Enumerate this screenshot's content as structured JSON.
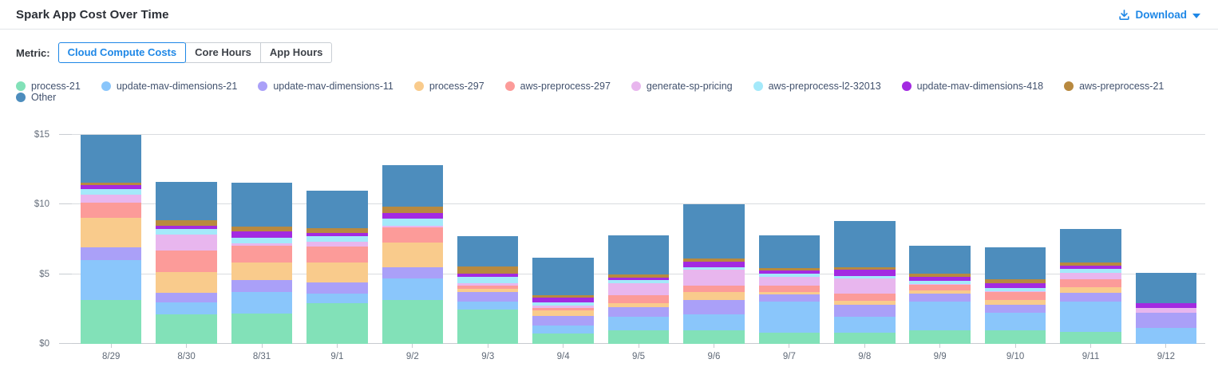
{
  "header": {
    "title": "Spark App Cost Over Time",
    "download_label": "Download"
  },
  "metric": {
    "label": "Metric:",
    "options": [
      "Cloud Compute Costs",
      "Core Hours",
      "App Hours"
    ],
    "selected": "Cloud Compute Costs"
  },
  "colors": {
    "accent_blue": "#1e87e6",
    "gridline": "#d9dcdf",
    "axis_text": "#666f7c"
  },
  "chart_data": {
    "type": "bar",
    "stacked": true,
    "title": "Spark App Cost Over Time",
    "xlabel": "",
    "ylabel": "Cloud Compute Costs ($)",
    "ylim": [
      0,
      15.7
    ],
    "y_tick_values": [
      0,
      5,
      10,
      15
    ],
    "y_tick_labels": [
      "$0",
      "$5",
      "$10",
      "$15"
    ],
    "grid": "horizontal",
    "legend_position": "top",
    "categories": [
      "8/29",
      "8/30",
      "8/31",
      "9/1",
      "9/2",
      "9/3",
      "9/4",
      "9/5",
      "9/6",
      "9/7",
      "9/8",
      "9/9",
      "9/10",
      "9/11",
      "9/12"
    ],
    "series": [
      {
        "name": "process-21",
        "color": "#82e1b8",
        "values": [
          3.14,
          2.13,
          2.15,
          2.9,
          3.14,
          2.44,
          0.76,
          0.99,
          0.99,
          0.8,
          0.8,
          0.99,
          0.99,
          0.86,
          0
        ]
      },
      {
        "name": "update-mav-dimensions-21",
        "color": "#8ac6fb",
        "values": [
          2.86,
          0.82,
          1.56,
          0.72,
          1.53,
          0.57,
          0.57,
          0.95,
          1.14,
          2.21,
          1.14,
          2.02,
          1.26,
          2.15,
          1.14
        ]
      },
      {
        "name": "update-mav-dimensions-11",
        "color": "#aaa0f8",
        "values": [
          0.9,
          0.71,
          0.86,
          0.8,
          0.82,
          0.7,
          0.67,
          0.69,
          1.01,
          0.51,
          0.88,
          0.57,
          0.57,
          0.65,
          1.11
        ]
      },
      {
        "name": "process-297",
        "color": "#f9cb8c",
        "values": [
          2.15,
          1.48,
          1.24,
          1.39,
          1.75,
          0.25,
          0.38,
          0.27,
          0.57,
          0.19,
          0.27,
          0.26,
          0.32,
          0.38,
          0
        ]
      },
      {
        "name": "aws-preprocess-297",
        "color": "#fc9b99",
        "values": [
          1.05,
          1.56,
          1.24,
          1.14,
          1.1,
          0.19,
          0.19,
          0.57,
          0.44,
          0.44,
          0.53,
          0.39,
          0.57,
          0.57,
          0
        ]
      },
      {
        "name": "generate-sp-pricing",
        "color": "#e8b6ee",
        "values": [
          0.6,
          1.11,
          0.15,
          0.38,
          0.1,
          0.19,
          0.19,
          0.87,
          1.15,
          0.65,
          1.05,
          0.05,
          0.05,
          0.49,
          0.32
        ]
      },
      {
        "name": "aws-preprocess-l2-32013",
        "color": "#a4e9fa",
        "values": [
          0.4,
          0.42,
          0.42,
          0.38,
          0.52,
          0.46,
          0.19,
          0.23,
          0.19,
          0.25,
          0.19,
          0.24,
          0.25,
          0.27,
          0
        ]
      },
      {
        "name": "update-mav-dimensions-418",
        "color": "#a32ae1",
        "values": [
          0.25,
          0.24,
          0.42,
          0.25,
          0.44,
          0.25,
          0.38,
          0.19,
          0.38,
          0.19,
          0.44,
          0.26,
          0.33,
          0.25,
          0.33
        ]
      },
      {
        "name": "aws-preprocess-21",
        "color": "#b8893f",
        "values": [
          0.22,
          0.39,
          0.38,
          0.34,
          0.41,
          0.51,
          0.14,
          0.23,
          0.23,
          0.19,
          0.19,
          0.26,
          0.28,
          0.19,
          0
        ]
      },
      {
        "name": "Other",
        "color": "#4d8dbd",
        "values": [
          3.43,
          2.72,
          3.14,
          2.67,
          2.99,
          2.15,
          2.68,
          2.78,
          3.9,
          2.34,
          3.31,
          2.01,
          2.28,
          2.42,
          2.19
        ]
      }
    ]
  }
}
